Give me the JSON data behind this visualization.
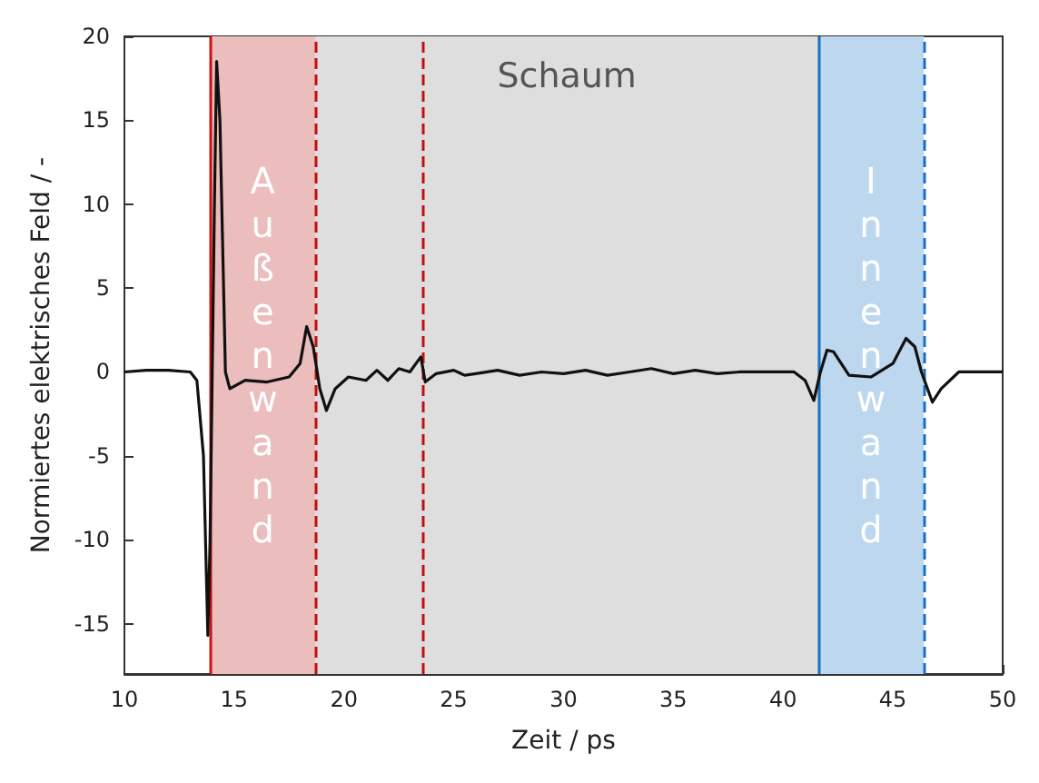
{
  "chart_data": {
    "type": "line",
    "xlabel": "Zeit / ps",
    "ylabel": "Normiertes elektrisches Feld / -",
    "xlim": [
      10,
      50
    ],
    "xticks": [
      10,
      15,
      20,
      25,
      30,
      35,
      40,
      45,
      50
    ],
    "ylim": [
      -18,
      20
    ],
    "yticks": [
      -15,
      -10,
      -5,
      0,
      5,
      10,
      15,
      20
    ],
    "grid": false,
    "marker": "none",
    "line_style": "solid",
    "series": [
      {
        "color": "#111111",
        "x": [
          10,
          11,
          12,
          13,
          13.3,
          13.6,
          13.8,
          13.9,
          14.0,
          14.1,
          14.2,
          14.35,
          14.6,
          14.8,
          15.5,
          16.5,
          17.5,
          18.0,
          18.3,
          18.6,
          18.9,
          19.2,
          19.6,
          20.2,
          21,
          21.5,
          22,
          22.5,
          23,
          23.5,
          23.7,
          24.2,
          25,
          25.5,
          26,
          27,
          28,
          29,
          30,
          31,
          32,
          33,
          34,
          35,
          36,
          37,
          38,
          39,
          40,
          40.5,
          41.0,
          41.4,
          41.7,
          42,
          42.3,
          43,
          44,
          45,
          45.6,
          46.0,
          46.3,
          46.8,
          47.2,
          48,
          49,
          50
        ],
        "values": [
          0,
          0.1,
          0.1,
          0,
          -0.5,
          -5,
          -15.7,
          -10,
          0,
          10,
          18.5,
          15,
          0,
          -1.0,
          -0.5,
          -0.6,
          -0.3,
          0.5,
          2.7,
          1.5,
          -1,
          -2.3,
          -1,
          -0.3,
          -0.5,
          0.1,
          -0.5,
          0.2,
          0,
          0.9,
          -0.6,
          -0.1,
          0.1,
          -0.2,
          -0.1,
          0.1,
          -0.2,
          0,
          -0.1,
          0.1,
          -0.2,
          0,
          0.2,
          -0.1,
          0.1,
          -0.1,
          0,
          0,
          0,
          0,
          -0.5,
          -1.7,
          0,
          1.3,
          1.2,
          -0.2,
          -0.3,
          0.5,
          2.0,
          1.5,
          0,
          -1.8,
          -1.0,
          0,
          0,
          0
        ]
      }
    ],
    "bands": [
      {
        "axis": "x",
        "from": 13.9,
        "to": 18.7,
        "label": "Außenwand",
        "color": "#ebbdbd"
      },
      {
        "axis": "x",
        "from": 18.7,
        "to": 41.6,
        "label": "Schaum",
        "color": "#dedede"
      },
      {
        "axis": "x",
        "from": 41.6,
        "to": 46.4,
        "label": "Innenwand",
        "color": "#bcd7ee"
      }
    ],
    "ref_lines": [
      {
        "axis": "x",
        "value": 13.9,
        "color": "#d01010",
        "line_style": "solid"
      },
      {
        "axis": "x",
        "value": 18.7,
        "color": "#c01010",
        "line_style": "dashed"
      },
      {
        "axis": "x",
        "value": 23.6,
        "color": "#c01010",
        "line_style": "dashed"
      },
      {
        "axis": "x",
        "value": 41.6,
        "color": "#1a70c0",
        "line_style": "solid"
      },
      {
        "axis": "x",
        "value": 46.4,
        "color": "#1a70c0",
        "line_style": "dashed"
      }
    ]
  }
}
